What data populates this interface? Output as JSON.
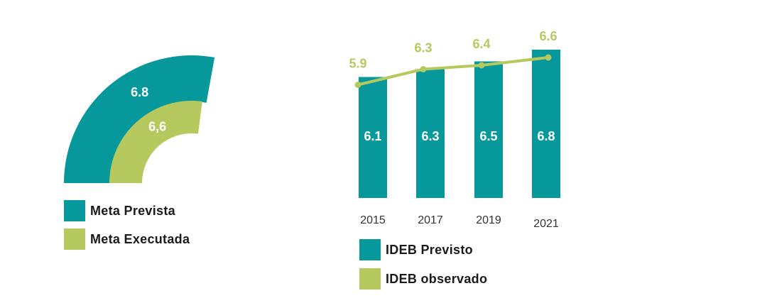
{
  "colors": {
    "teal": "#06989b",
    "green": "#b6c95f",
    "value_white": "#ffffff"
  },
  "chart_data": [
    {
      "type": "gauge",
      "max": 10,
      "series": [
        {
          "name": "Meta Prevista",
          "value": 6.8,
          "label": "6.8",
          "color": "#06989b"
        },
        {
          "name": "Meta Executada",
          "value": 6.6,
          "label": "6,6",
          "color": "#b6c95f"
        }
      ],
      "legend": "bottom-left"
    },
    {
      "type": "bar",
      "categories": [
        "2015",
        "2017",
        "2019",
        "2021"
      ],
      "series": [
        {
          "name": "IDEB Previsto",
          "type": "bar",
          "values": [
            6.1,
            6.3,
            6.5,
            6.8
          ],
          "labels": [
            "6.1",
            "6.3",
            "6.5",
            "6.8"
          ],
          "color": "#06989b"
        },
        {
          "name": "IDEB observado",
          "type": "line",
          "values": [
            5.9,
            6.3,
            6.4,
            6.6
          ],
          "labels": [
            "5.9",
            "6.3",
            "6.4",
            "6.6"
          ],
          "color": "#b6c95f"
        }
      ],
      "ylim": [
        3.0,
        7.0
      ],
      "legend": "bottom"
    }
  ]
}
